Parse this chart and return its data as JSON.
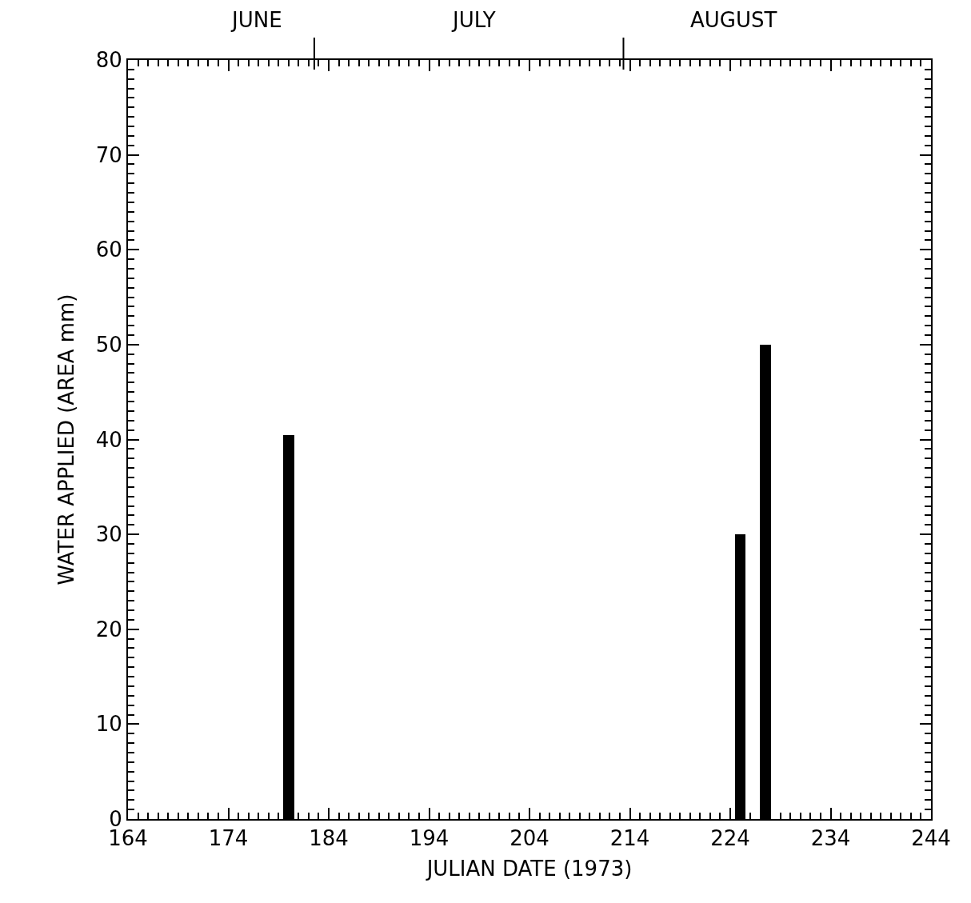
{
  "chart_data": {
    "type": "bar",
    "xlabel": "JULIAN DATE (1973)",
    "ylabel": "WATER APPLIED (AREA mm)",
    "x": [
      180,
      225,
      227.5
    ],
    "values": [
      40.5,
      30,
      50
    ],
    "color": "#000000",
    "xlim": [
      164,
      244
    ],
    "xticks": [
      164,
      174,
      184,
      194,
      204,
      214,
      224,
      234,
      244
    ],
    "ylim": [
      0,
      80
    ],
    "yticks": [
      0,
      10,
      20,
      30,
      40,
      50,
      60,
      70,
      80
    ],
    "annotations": [
      "JUNE",
      "JULY",
      "AUGUST"
    ],
    "grid": false,
    "legend": false
  }
}
